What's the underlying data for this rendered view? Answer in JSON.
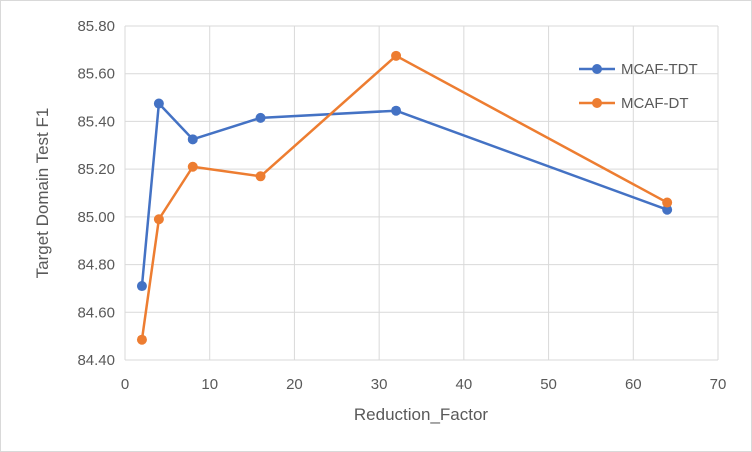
{
  "chart_data": {
    "type": "line",
    "title": "",
    "xlabel": "Reduction_Factor",
    "ylabel": "Target Domain Test F1",
    "xlim": [
      0,
      70
    ],
    "ylim": [
      84.4,
      85.8
    ],
    "x_ticks": [
      "0",
      "10",
      "20",
      "30",
      "40",
      "50",
      "60",
      "70"
    ],
    "y_ticks": [
      "84.40",
      "84.60",
      "84.80",
      "85.00",
      "85.20",
      "85.40",
      "85.60",
      "85.80"
    ],
    "grid": true,
    "legend_position": "top-right",
    "series": [
      {
        "name": "MCAF-TDT",
        "color": "#4472c4",
        "x": [
          2,
          4,
          8,
          16,
          32,
          64
        ],
        "y": [
          84.71,
          85.475,
          85.325,
          85.415,
          85.445,
          85.03
        ]
      },
      {
        "name": "MCAF-DT",
        "color": "#ed7d31",
        "x": [
          2,
          4,
          8,
          16,
          32,
          64
        ],
        "y": [
          84.485,
          84.99,
          85.21,
          85.17,
          85.675,
          85.06
        ]
      }
    ]
  }
}
